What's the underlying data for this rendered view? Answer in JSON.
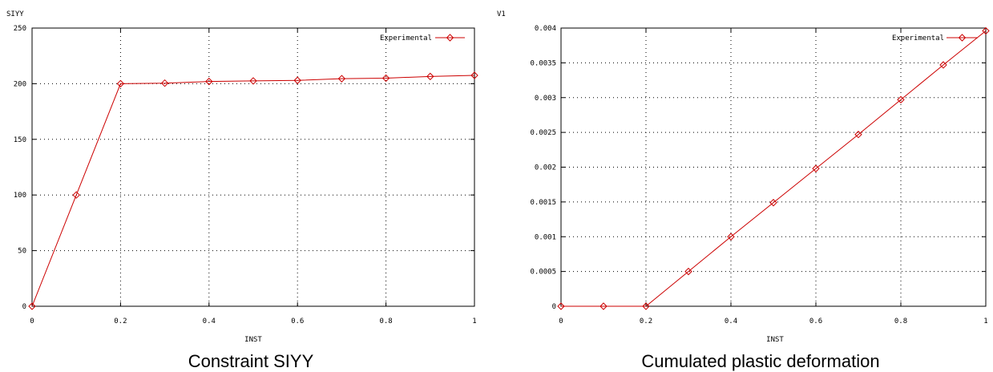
{
  "colors": {
    "series": "#cc0000",
    "grid": "#000000",
    "frame": "#000000"
  },
  "chart_data": [
    {
      "type": "line",
      "title": "",
      "caption": "Constraint SIYY",
      "ylabel": "SIYY",
      "xlabel": "INST",
      "xlim": [
        0,
        1
      ],
      "ylim": [
        0,
        250
      ],
      "xticks": [
        "0",
        "0.2",
        "0.4",
        "0.6",
        "0.8",
        "1"
      ],
      "yticks": [
        "0",
        "50",
        "100",
        "150",
        "200",
        "250"
      ],
      "xtick_values": [
        0,
        0.2,
        0.4,
        0.6,
        0.8,
        1
      ],
      "ytick_values": [
        0,
        50,
        100,
        150,
        200,
        250
      ],
      "grid": true,
      "legend_position": "top-right",
      "x": [
        0,
        0.1,
        0.2,
        0.3,
        0.4,
        0.5,
        0.6,
        0.7,
        0.8,
        0.9,
        1.0
      ],
      "series": [
        {
          "name": "Experimental",
          "values": [
            0,
            100,
            200,
            200.5,
            202,
            202.5,
            203,
            204.5,
            205,
            206.5,
            207.5
          ]
        }
      ]
    },
    {
      "type": "line",
      "title": "",
      "caption": "Cumulated plastic deformation",
      "ylabel": "V1",
      "xlabel": "INST",
      "xlim": [
        0,
        1
      ],
      "ylim": [
        0,
        0.004
      ],
      "xticks": [
        "0",
        "0.2",
        "0.4",
        "0.6",
        "0.8",
        "1"
      ],
      "yticks": [
        "0",
        "0.0005",
        "0.001",
        "0.0015",
        "0.002",
        "0.0025",
        "0.003",
        "0.0035",
        "0.004"
      ],
      "xtick_values": [
        0,
        0.2,
        0.4,
        0.6,
        0.8,
        1
      ],
      "ytick_values": [
        0,
        0.0005,
        0.001,
        0.0015,
        0.002,
        0.0025,
        0.003,
        0.0035,
        0.004
      ],
      "grid": true,
      "legend_position": "top-right",
      "x": [
        0,
        0.1,
        0.2,
        0.3,
        0.4,
        0.5,
        0.6,
        0.7,
        0.8,
        0.9,
        1.0
      ],
      "series": [
        {
          "name": "Experimental",
          "values": [
            0,
            0,
            0,
            0.0005,
            0.001,
            0.00149,
            0.00198,
            0.00247,
            0.00297,
            0.00347,
            0.00396
          ]
        }
      ]
    }
  ]
}
